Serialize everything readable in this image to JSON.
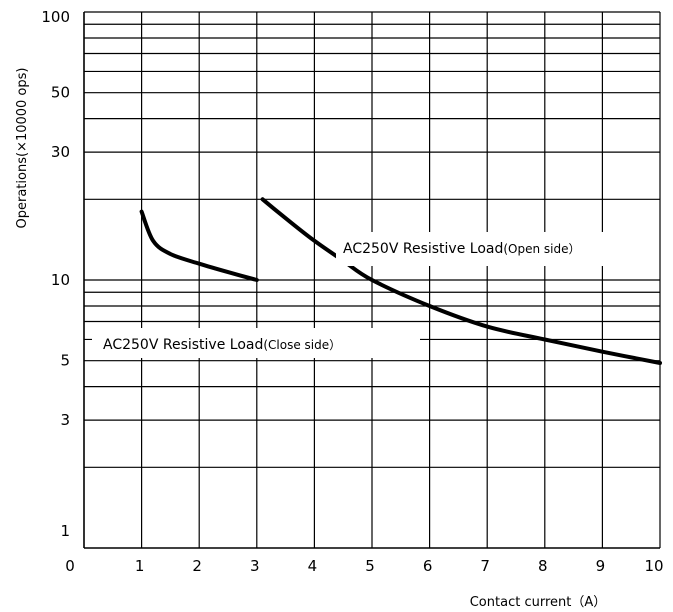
{
  "chart_data": {
    "type": "line",
    "title": "",
    "xlabel": "Contact current（A）",
    "ylabel": "Operations(×10000 ops)",
    "xlim": [
      0,
      10
    ],
    "ylim": [
      1,
      100
    ],
    "y_scale": "log",
    "grid": true,
    "x_ticks": [
      "0",
      "1",
      "2",
      "3",
      "4",
      "5",
      "6",
      "7",
      "8",
      "9",
      "10"
    ],
    "y_ticks": [
      {
        "value": 100,
        "label": "100"
      },
      {
        "value": 50,
        "label": "50"
      },
      {
        "value": 30,
        "label": "30"
      },
      {
        "value": 10,
        "label": "10"
      },
      {
        "value": 5,
        "label": "5"
      },
      {
        "value": 3,
        "label": "3"
      },
      {
        "value": 1,
        "label": "1"
      }
    ],
    "y_grid": [
      100,
      90,
      80,
      70,
      60,
      50,
      40,
      30,
      20,
      10,
      9,
      8,
      7,
      6,
      5,
      4,
      3,
      2
    ],
    "series": [
      {
        "name": "AC250V Resistive Load(Close side)",
        "x": [
          1,
          1.2,
          1.5,
          2,
          2.5,
          3
        ],
        "y": [
          18,
          14,
          12.5,
          11.5,
          10.7,
          10
        ]
      },
      {
        "name": "AC250V Resistive Load(Open side)",
        "x": [
          3.1,
          3.5,
          4,
          4.5,
          5,
          6,
          7,
          8,
          9,
          10
        ],
        "y": [
          20,
          17,
          14,
          11.8,
          10,
          8,
          6.7,
          6,
          5.4,
          4.9
        ]
      }
    ],
    "annotations": [
      {
        "main": "AC250V  Resistive Load",
        "suffix": "(Open side）"
      },
      {
        "main": "AC250V  Resistive Load",
        "suffix": "(Close side）"
      }
    ]
  }
}
